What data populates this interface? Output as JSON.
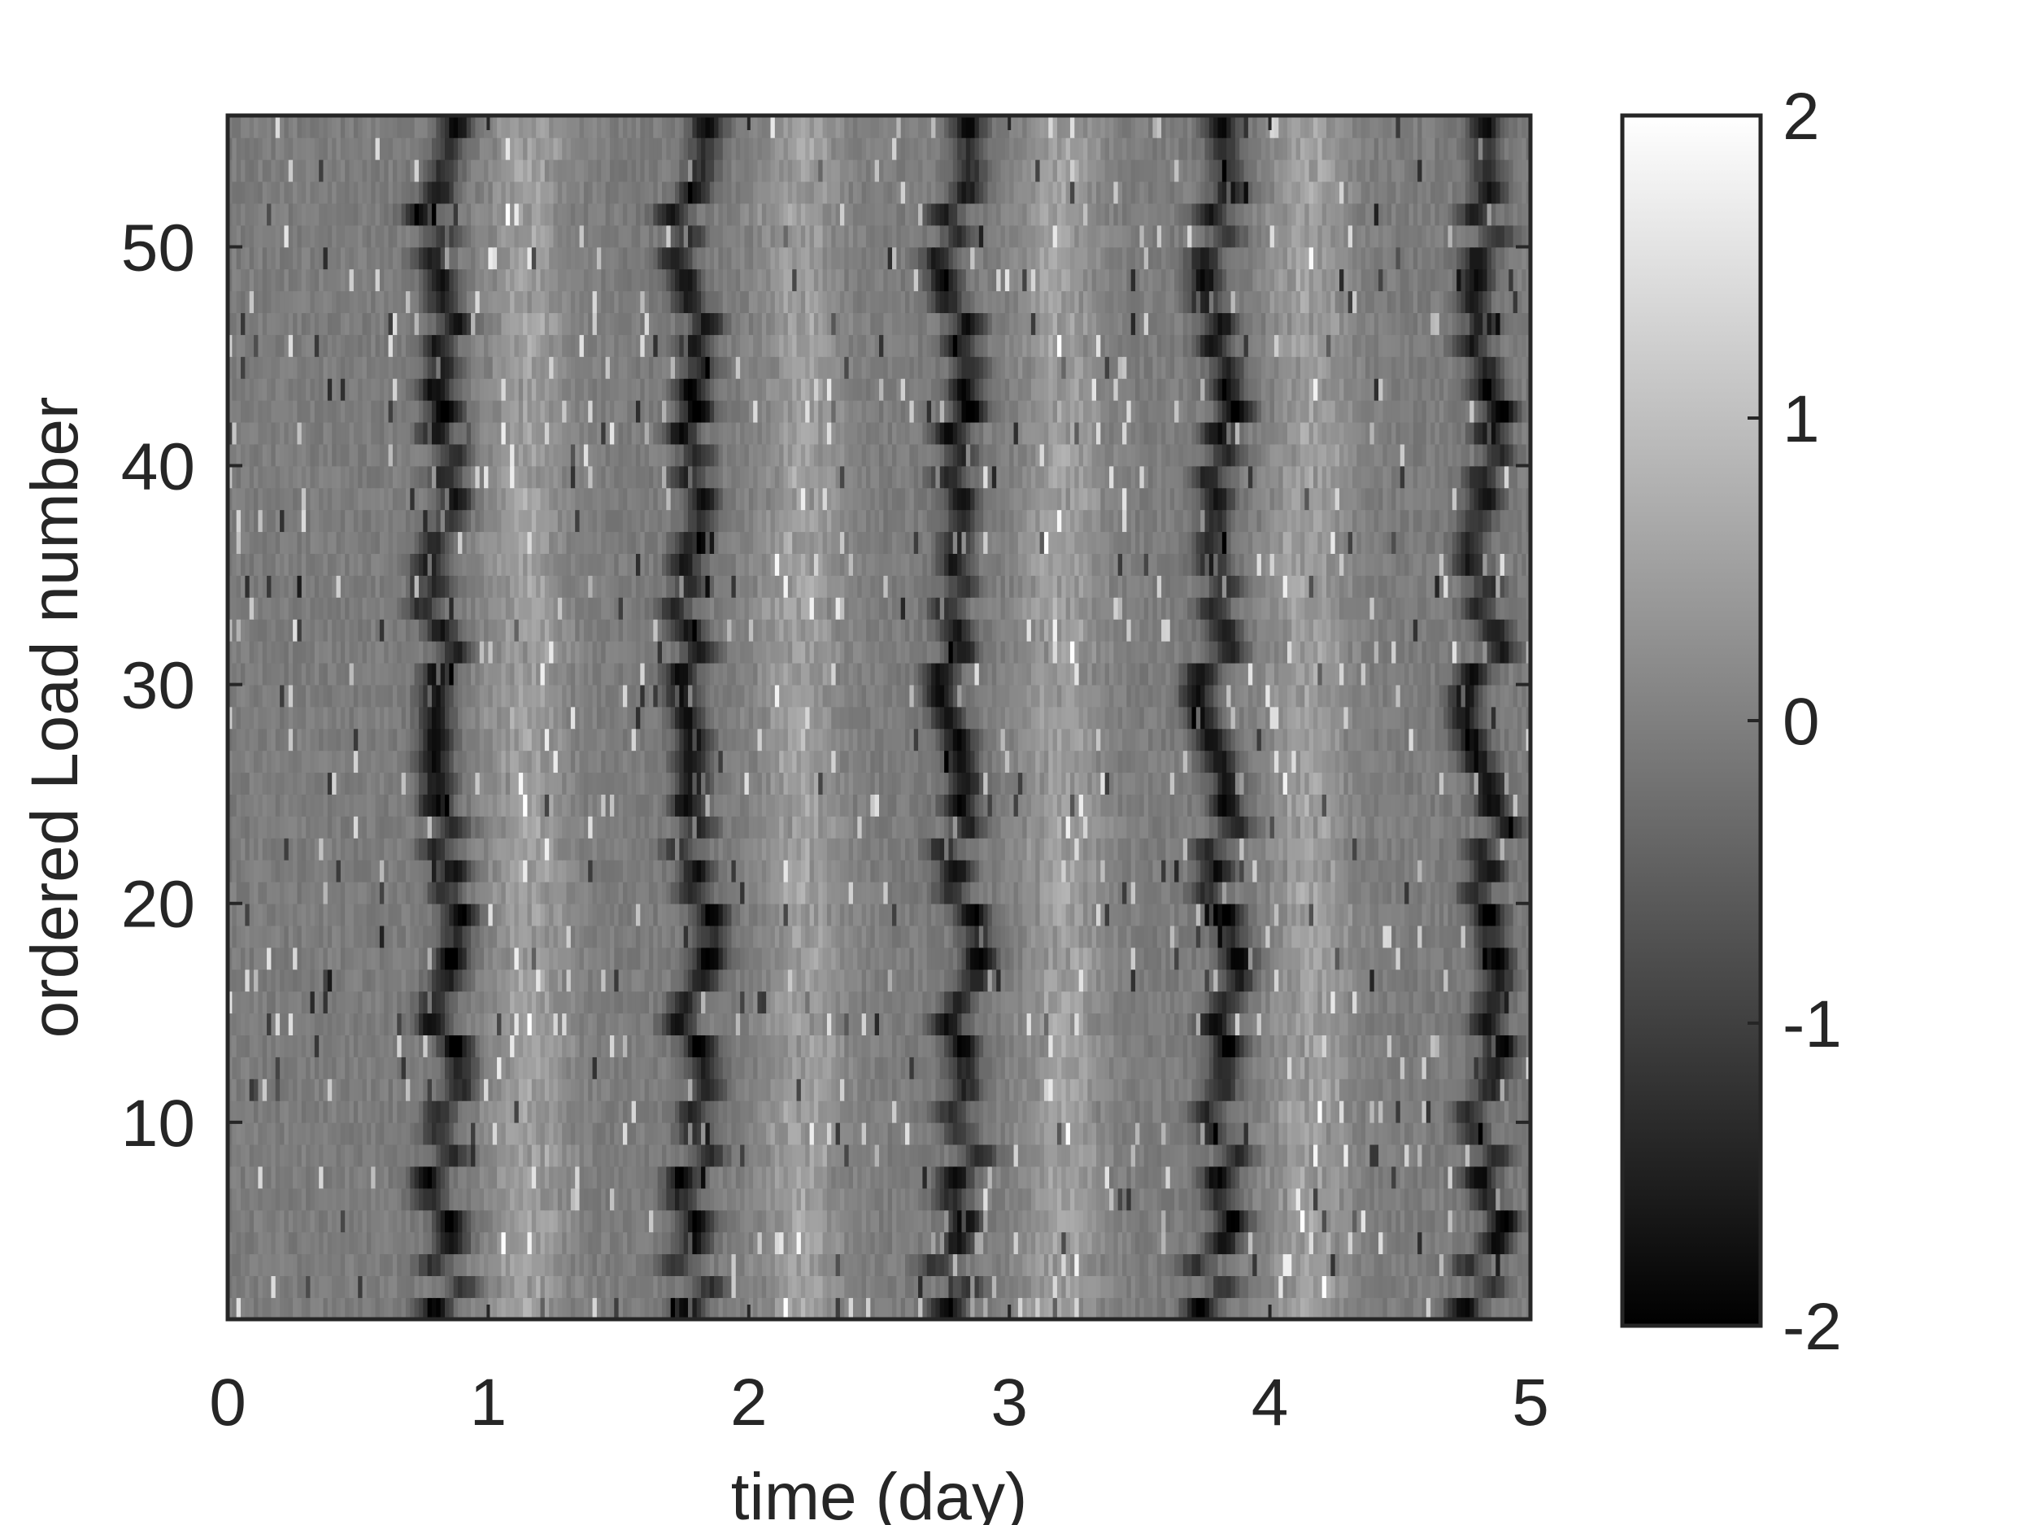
{
  "chart_data": {
    "type": "heatmap",
    "title": "",
    "xlabel": "time (day)",
    "ylabel": "ordered Load number",
    "xlim": [
      0,
      5
    ],
    "ylim": [
      1,
      56
    ],
    "x_ticks": [
      0,
      1,
      2,
      3,
      4,
      5
    ],
    "x_tick_labels": [
      "0",
      "1",
      "2",
      "3",
      "4",
      "5"
    ],
    "y_ticks": [
      10,
      20,
      30,
      40,
      50
    ],
    "y_tick_labels": [
      "10",
      "20",
      "30",
      "40",
      "50"
    ],
    "colormap": "gray",
    "colorbar": {
      "clim": [
        -2,
        2
      ],
      "ticks": [
        -2,
        -1,
        0,
        1,
        2
      ],
      "tick_labels": [
        "-2",
        "-1",
        "0",
        "1",
        "2"
      ]
    },
    "structure": {
      "dark_band_centers_day": [
        0.82,
        1.78,
        2.8,
        3.8,
        4.82
      ],
      "bright_band_centers_day": [
        1.15,
        2.2,
        3.2,
        4.15
      ],
      "pattern": "daily periodic: low (dark) values near ~0.8 of each day, high (light) values shortly after"
    },
    "grid": false,
    "legend": "none"
  },
  "colors": {
    "background": "#ffffff",
    "axes": "#262626",
    "low": "#000000",
    "high": "#ffffff"
  }
}
